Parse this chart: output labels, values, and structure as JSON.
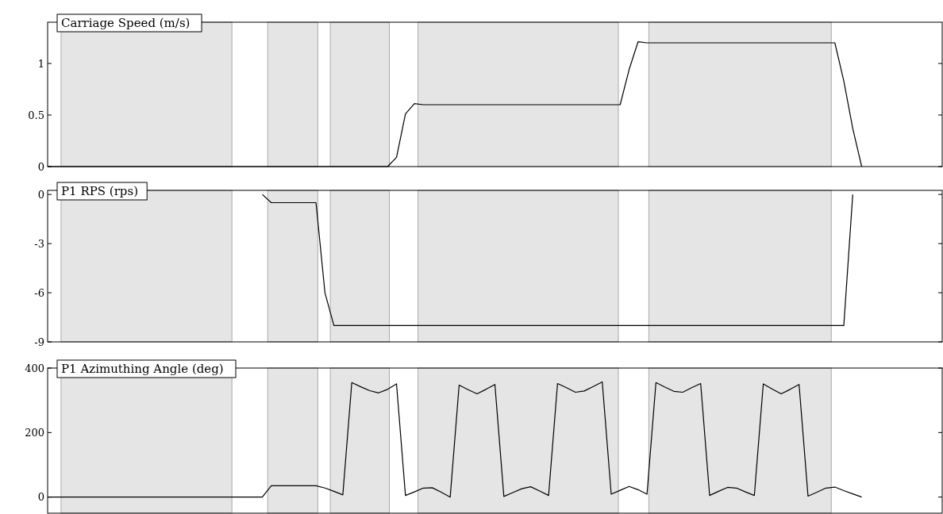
{
  "chart_data": [
    {
      "type": "line",
      "title": "Carriage Speed (m/s)",
      "categories": [
        null,
        null,
        null,
        null,
        null,
        null,
        null,
        null,
        null,
        null,
        null,
        null,
        null,
        null,
        null,
        null,
        null,
        null,
        null,
        null,
        null,
        null,
        null,
        null,
        null,
        null,
        null,
        null,
        null,
        null,
        null,
        null,
        null,
        null,
        null,
        null,
        null,
        null,
        null,
        null,
        null,
        null,
        null,
        null,
        null,
        null,
        null,
        null,
        null,
        null,
        null,
        null,
        null,
        null,
        null,
        null,
        null,
        null,
        null,
        null,
        null,
        null,
        null,
        null,
        null,
        null,
        null,
        null,
        null,
        null,
        null,
        null,
        null,
        null,
        null,
        null,
        null,
        null,
        null,
        null,
        null,
        null,
        null,
        null,
        null,
        null,
        null,
        null,
        null,
        null,
        null,
        null,
        null,
        null,
        null,
        null,
        null,
        null,
        null,
        null,
        null
      ],
      "ylim": [
        0,
        1.4
      ],
      "yticks": [
        0,
        0.5,
        1
      ],
      "tick_labels": "y",
      "marker": "none",
      "line_style": "solid",
      "series": [
        {
          "color": "#000000",
          "values": [
            0,
            0,
            0,
            0,
            0,
            0,
            0,
            0,
            0,
            0,
            0,
            0,
            0,
            0,
            0,
            0,
            0,
            0,
            0,
            0,
            0,
            0,
            0,
            0,
            0,
            0,
            0,
            0,
            0,
            0,
            0,
            0,
            0,
            0,
            0,
            0,
            0,
            0,
            0,
            0.09,
            0.51,
            0.61,
            0.6,
            0.6,
            0.6,
            0.6,
            0.6,
            0.6,
            0.6,
            0.6,
            0.6,
            0.6,
            0.6,
            0.6,
            0.6,
            0.6,
            0.6,
            0.6,
            0.6,
            0.6,
            0.6,
            0.6,
            0.6,
            0.6,
            0.6,
            0.94,
            1.21,
            1.2,
            1.2,
            1.2,
            1.2,
            1.2,
            1.2,
            1.2,
            1.2,
            1.2,
            1.2,
            1.2,
            1.2,
            1.2,
            1.2,
            1.2,
            1.2,
            1.2,
            1.2,
            1.2,
            1.2,
            1.2,
            1.2,
            0.83,
            0.37,
            0,
            null,
            null,
            null,
            null,
            null,
            null,
            null,
            null,
            null
          ]
        }
      ]
    },
    {
      "type": "line",
      "title": "P1 RPS (rps)",
      "categories": [
        null,
        null,
        null,
        null,
        null,
        null,
        null,
        null,
        null,
        null,
        null,
        null,
        null,
        null,
        null,
        null,
        null,
        null,
        null,
        null,
        null,
        null,
        null,
        null,
        null,
        null,
        null,
        null,
        null,
        null,
        null,
        null,
        null,
        null,
        null,
        null,
        null,
        null,
        null,
        null,
        null,
        null,
        null,
        null,
        null,
        null,
        null,
        null,
        null,
        null,
        null,
        null,
        null,
        null,
        null,
        null,
        null,
        null,
        null,
        null,
        null,
        null,
        null,
        null,
        null,
        null,
        null,
        null,
        null,
        null,
        null,
        null,
        null,
        null,
        null,
        null,
        null,
        null,
        null,
        null,
        null,
        null,
        null,
        null,
        null,
        null,
        null,
        null,
        null,
        null,
        null,
        null,
        null,
        null,
        null,
        null,
        null,
        null,
        null,
        null,
        null
      ],
      "ylim": [
        -9,
        0.25
      ],
      "yticks": [
        {
          "value": 0,
          "label": "0"
        },
        {
          "value": -3,
          "label": "-3"
        },
        {
          "value": -6,
          "label": "-6"
        },
        {
          "value": -9,
          "label": "-9"
        }
      ],
      "tick_labels": "y",
      "marker": "none",
      "line_style": "solid",
      "series": [
        {
          "color": "#000000",
          "values": [
            null,
            null,
            null,
            null,
            null,
            null,
            null,
            null,
            null,
            null,
            null,
            null,
            null,
            null,
            null,
            null,
            null,
            null,
            null,
            null,
            null,
            null,
            null,
            null,
            0,
            -0.5,
            -0.5,
            -0.5,
            -0.5,
            -0.5,
            -0.5,
            -6,
            -8,
            -8,
            -8,
            -8,
            -8,
            -8,
            -8,
            -8,
            -8,
            -8,
            -8,
            -8,
            -8,
            -8,
            -8,
            -8,
            -8,
            -8,
            -8,
            -8,
            -8,
            -8,
            -8,
            -8,
            -8,
            -8,
            -8,
            -8,
            -8,
            -8,
            -8,
            -8,
            -8,
            -8,
            -8,
            -8,
            -8,
            -8,
            -8,
            -8,
            -8,
            -8,
            -8,
            -8,
            -8,
            -8,
            -8,
            -8,
            -8,
            -8,
            -8,
            -8,
            -8,
            -8,
            -8,
            -8,
            -8,
            -8,
            0,
            null,
            null,
            null,
            null,
            null,
            null,
            null,
            null,
            null,
            null
          ]
        }
      ]
    },
    {
      "type": "line",
      "title": "P1 Azimuthing Angle (deg)",
      "categories": [
        null,
        null,
        null,
        null,
        null,
        null,
        null,
        null,
        null,
        null,
        null,
        null,
        null,
        null,
        null,
        null,
        null,
        null,
        null,
        null,
        null,
        null,
        null,
        null,
        null,
        null,
        null,
        null,
        null,
        null,
        null,
        null,
        null,
        null,
        null,
        null,
        null,
        null,
        null,
        null,
        null,
        null,
        null,
        null,
        null,
        null,
        null,
        null,
        null,
        null,
        null,
        null,
        null,
        null,
        null,
        null,
        null,
        null,
        null,
        null,
        null,
        null,
        null,
        null,
        null,
        null,
        null,
        null,
        null,
        null,
        null,
        null,
        null,
        null,
        null,
        null,
        null,
        null,
        null,
        null,
        null,
        null,
        null,
        null,
        null,
        null,
        null,
        null,
        null,
        null,
        null,
        null,
        null,
        null,
        null,
        null,
        null,
        null,
        null,
        null,
        null
      ],
      "ylim": [
        -50,
        400
      ],
      "yticks": [
        0,
        200,
        400
      ],
      "tick_labels": "y",
      "marker": "none",
      "line_style": "solid",
      "series": [
        {
          "color": "#000000",
          "values": [
            0,
            0,
            0,
            0,
            0,
            0,
            0,
            0,
            0,
            0,
            0,
            0,
            0,
            0,
            0,
            0,
            0,
            0,
            0,
            0,
            0,
            0,
            0,
            0,
            0,
            35,
            35,
            35,
            35,
            35,
            35,
            28,
            18,
            7,
            355,
            342,
            330,
            323,
            334,
            351,
            5,
            16,
            28,
            29,
            15,
            0,
            347,
            333,
            320,
            334,
            349,
            2,
            14,
            26,
            32,
            19,
            5,
            352,
            339,
            325,
            329,
            343,
            357,
            9,
            21,
            33,
            23,
            9,
            355,
            341,
            328,
            325,
            339,
            352,
            5,
            18,
            30,
            28,
            16,
            5,
            351,
            335,
            320,
            334,
            349,
            3,
            15,
            28,
            31,
            20,
            10,
            0,
            null,
            null,
            null,
            null,
            null,
            null,
            null,
            null,
            null
          ]
        }
      ]
    }
  ]
}
